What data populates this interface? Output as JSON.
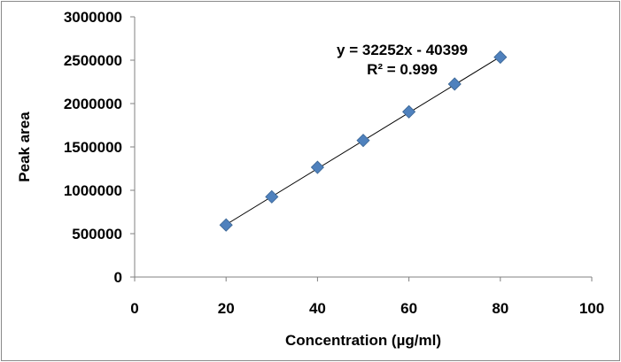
{
  "chart_data": {
    "type": "scatter",
    "xlabel": "Concentration (µg/ml)",
    "ylabel": "Peak area",
    "xlim": [
      0,
      100
    ],
    "ylim": [
      0,
      3000000
    ],
    "x_ticks": [
      0,
      20,
      40,
      60,
      80,
      100
    ],
    "y_ticks": [
      0,
      500000,
      1000000,
      1500000,
      2000000,
      2500000,
      3000000
    ],
    "x_tick_labels": [
      "0",
      "20",
      "40",
      "60",
      "80",
      "100"
    ],
    "y_tick_labels": [
      "0",
      "500000",
      "1000000",
      "1500000",
      "2000000",
      "2500000",
      "3000000"
    ],
    "grid": false,
    "series": [
      {
        "x": [
          20,
          30,
          40,
          50,
          60,
          70,
          80
        ],
        "y": [
          600000,
          925000,
          1265000,
          1575000,
          1905000,
          2225000,
          2535000
        ],
        "marker": "diamond",
        "color": "#4f81bd"
      }
    ],
    "trendline": {
      "type": "linear",
      "slope": 32252,
      "intercept": -40399,
      "x_range": [
        20,
        80
      ],
      "color": "#000000"
    },
    "annotations": [
      "y = 32252x - 40399",
      "R² = 0.999"
    ]
  }
}
